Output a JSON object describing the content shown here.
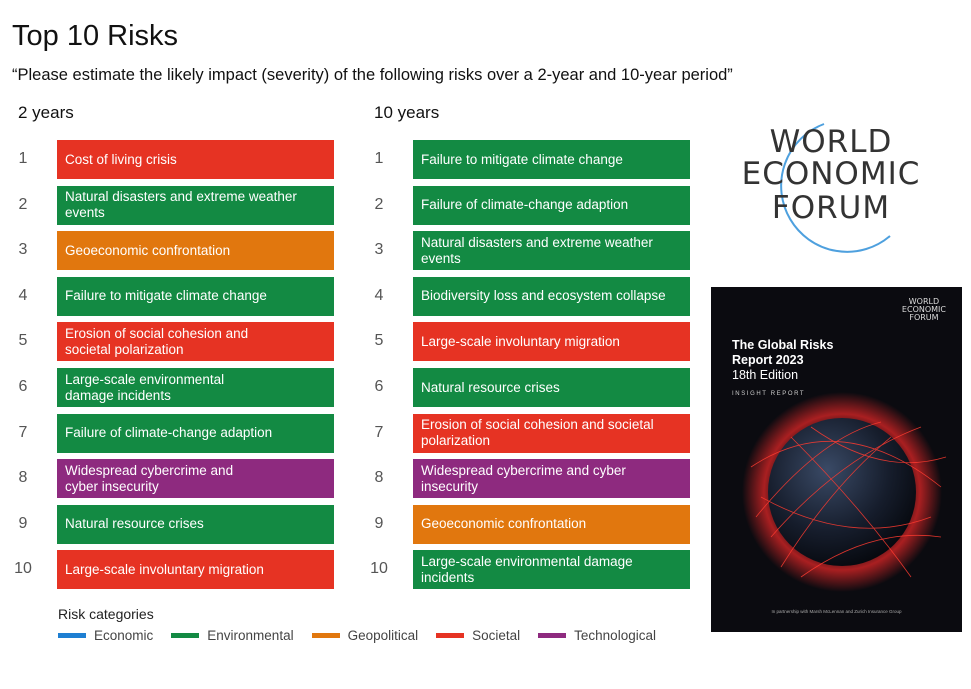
{
  "title": "Top 10 Risks",
  "subtitle": "“Please estimate the likely impact (severity) of the following risks over a 2-year and 10-year period”",
  "columns": [
    {
      "heading": "2 years",
      "items": [
        {
          "rank": "1",
          "lines": [
            "Cost of living crisis"
          ],
          "category": "Societal"
        },
        {
          "rank": "2",
          "lines": [
            "Natural disasters and extreme weather",
            "events"
          ],
          "category": "Environmental"
        },
        {
          "rank": "3",
          "lines": [
            "Geoeconomic confrontation"
          ],
          "category": "Geopolitical"
        },
        {
          "rank": "4",
          "lines": [
            "Failure to mitigate climate change"
          ],
          "category": "Environmental"
        },
        {
          "rank": "5",
          "lines": [
            "Erosion of social cohesion and",
            "societal polarization"
          ],
          "category": "Societal"
        },
        {
          "rank": "6",
          "lines": [
            "Large-scale environmental",
            "damage incidents"
          ],
          "category": "Environmental"
        },
        {
          "rank": "7",
          "lines": [
            "Failure of climate-change adaption"
          ],
          "category": "Environmental"
        },
        {
          "rank": "8",
          "lines": [
            "Widespread cybercrime and",
            "cyber insecurity"
          ],
          "category": "Technological"
        },
        {
          "rank": "9",
          "lines": [
            "Natural resource crises"
          ],
          "category": "Environmental"
        },
        {
          "rank": "10",
          "lines": [
            "Large-scale involuntary migration"
          ],
          "category": "Societal"
        }
      ]
    },
    {
      "heading": "10 years",
      "items": [
        {
          "rank": "1",
          "lines": [
            "Failure to mitigate climate change"
          ],
          "category": "Environmental"
        },
        {
          "rank": "2",
          "lines": [
            "Failure of climate-change adaption"
          ],
          "category": "Environmental"
        },
        {
          "rank": "3",
          "lines": [
            "Natural disasters and extreme weather",
            "events"
          ],
          "category": "Environmental"
        },
        {
          "rank": "4",
          "lines": [
            "Biodiversity loss and ecosystem collapse"
          ],
          "category": "Environmental"
        },
        {
          "rank": "5",
          "lines": [
            "Large-scale involuntary migration"
          ],
          "category": "Societal"
        },
        {
          "rank": "6",
          "lines": [
            "Natural resource crises"
          ],
          "category": "Environmental"
        },
        {
          "rank": "7",
          "lines": [
            "Erosion of social cohesion and societal",
            "polarization"
          ],
          "category": "Societal"
        },
        {
          "rank": "8",
          "lines": [
            "Widespread cybercrime and cyber",
            "insecurity"
          ],
          "category": "Technological"
        },
        {
          "rank": "9",
          "lines": [
            "Geoeconomic confrontation"
          ],
          "category": "Geopolitical"
        },
        {
          "rank": "10",
          "lines": [
            "Large-scale environmental damage",
            "incidents"
          ],
          "category": "Environmental"
        }
      ]
    }
  ],
  "legend": {
    "title": "Risk categories",
    "items": [
      {
        "label": "Economic",
        "color": "#1e7fd2"
      },
      {
        "label": "Environmental",
        "color": "#138a43"
      },
      {
        "label": "Geopolitical",
        "color": "#e1770e"
      },
      {
        "label": "Societal",
        "color": "#e63323"
      },
      {
        "label": "Technological",
        "color": "#8e2a7f"
      }
    ]
  },
  "wef_logo": {
    "line1": "WORLD",
    "line2": "ECONOMIC",
    "line3": "FORUM",
    "arc_color": "#2f8fd8"
  },
  "report_cover": {
    "brand_lines": [
      "WORLD",
      "ECONOMIC",
      "FORUM"
    ],
    "title_line1": "The Global Risks",
    "title_line2": "Report 2023",
    "edition": "18th Edition",
    "kicker": "INSIGHT REPORT",
    "partner": "In partnership with Marsh McLennan and Zurich Insurance Group"
  }
}
